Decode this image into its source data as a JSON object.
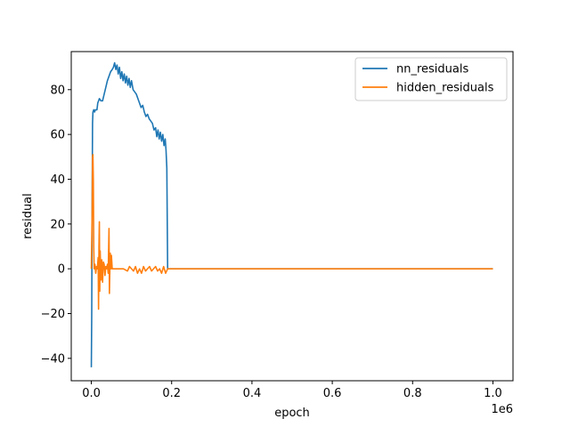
{
  "chart_data": {
    "type": "line",
    "title": "",
    "xlabel": "epoch",
    "ylabel": "residual",
    "x_offset_text": "1e6",
    "xlim": [
      -50000,
      1050000
    ],
    "ylim": [
      -50,
      97
    ],
    "x_ticks": [
      0,
      200000,
      400000,
      600000,
      800000,
      1000000
    ],
    "x_tick_labels": [
      "0.0",
      "0.2",
      "0.4",
      "0.6",
      "0.8",
      "1.0"
    ],
    "y_ticks": [
      -40,
      -20,
      0,
      20,
      40,
      60,
      80
    ],
    "y_tick_labels": [
      "−40",
      "−20",
      "0",
      "20",
      "40",
      "60",
      "80"
    ],
    "grid": false,
    "legend_position": "top-right",
    "series": [
      {
        "name": "nn_residuals",
        "color": "#1f77b4",
        "points": [
          [
            0,
            -44
          ],
          [
            1000,
            -20
          ],
          [
            2000,
            30
          ],
          [
            3000,
            65
          ],
          [
            4000,
            70
          ],
          [
            6000,
            71
          ],
          [
            8000,
            70
          ],
          [
            10000,
            71
          ],
          [
            14000,
            71
          ],
          [
            16000,
            74
          ],
          [
            20000,
            76
          ],
          [
            24000,
            75
          ],
          [
            28000,
            75
          ],
          [
            32000,
            78
          ],
          [
            36000,
            81
          ],
          [
            40000,
            84
          ],
          [
            44000,
            86
          ],
          [
            48000,
            88
          ],
          [
            52000,
            89
          ],
          [
            55000,
            90
          ],
          [
            58000,
            92
          ],
          [
            61000,
            89
          ],
          [
            64000,
            91
          ],
          [
            67000,
            87
          ],
          [
            70000,
            90
          ],
          [
            73000,
            85
          ],
          [
            76000,
            88
          ],
          [
            79000,
            84
          ],
          [
            82000,
            87
          ],
          [
            85000,
            83
          ],
          [
            88000,
            86
          ],
          [
            91000,
            82
          ],
          [
            94000,
            85
          ],
          [
            97000,
            81
          ],
          [
            100000,
            84
          ],
          [
            104000,
            80
          ],
          [
            108000,
            79
          ],
          [
            112000,
            78
          ],
          [
            116000,
            76
          ],
          [
            120000,
            74
          ],
          [
            124000,
            72
          ],
          [
            128000,
            73
          ],
          [
            132000,
            70
          ],
          [
            136000,
            68
          ],
          [
            140000,
            69
          ],
          [
            144000,
            67
          ],
          [
            148000,
            66
          ],
          [
            152000,
            65
          ],
          [
            156000,
            62
          ],
          [
            160000,
            63
          ],
          [
            163000,
            59
          ],
          [
            166000,
            62
          ],
          [
            169000,
            58
          ],
          [
            172000,
            61
          ],
          [
            175000,
            57
          ],
          [
            178000,
            60
          ],
          [
            181000,
            55
          ],
          [
            184000,
            58
          ],
          [
            186000,
            53
          ],
          [
            188000,
            45
          ],
          [
            190000,
            0
          ],
          [
            300000,
            0
          ],
          [
            500000,
            0
          ],
          [
            700000,
            0
          ],
          [
            900000,
            0
          ],
          [
            1000000,
            0
          ]
        ]
      },
      {
        "name": "hidden_residuals",
        "color": "#ff7f0e",
        "points": [
          [
            0,
            0
          ],
          [
            2000,
            25
          ],
          [
            3000,
            50
          ],
          [
            4000,
            51
          ],
          [
            5000,
            40
          ],
          [
            6000,
            10
          ],
          [
            7000,
            0
          ],
          [
            9000,
            2
          ],
          [
            11000,
            -2
          ],
          [
            13000,
            1
          ],
          [
            15000,
            0
          ],
          [
            17000,
            5
          ],
          [
            18000,
            -18
          ],
          [
            19000,
            10
          ],
          [
            20000,
            21
          ],
          [
            21000,
            -10
          ],
          [
            22000,
            8
          ],
          [
            24000,
            -5
          ],
          [
            26000,
            4
          ],
          [
            28000,
            -6
          ],
          [
            30000,
            3
          ],
          [
            32000,
            2
          ],
          [
            34000,
            -3
          ],
          [
            36000,
            1
          ],
          [
            38000,
            0
          ],
          [
            40000,
            2
          ],
          [
            42000,
            -2
          ],
          [
            44000,
            18
          ],
          [
            45000,
            -11
          ],
          [
            47000,
            7
          ],
          [
            49000,
            0
          ],
          [
            50000,
            6
          ],
          [
            52000,
            0
          ],
          [
            60000,
            0
          ],
          [
            80000,
            0
          ],
          [
            90000,
            -1
          ],
          [
            95000,
            1
          ],
          [
            100000,
            0
          ],
          [
            105000,
            -1
          ],
          [
            110000,
            1
          ],
          [
            115000,
            -2
          ],
          [
            120000,
            0
          ],
          [
            125000,
            -2
          ],
          [
            130000,
            1
          ],
          [
            135000,
            -1
          ],
          [
            140000,
            0
          ],
          [
            145000,
            1
          ],
          [
            150000,
            -1
          ],
          [
            155000,
            0
          ],
          [
            160000,
            1
          ],
          [
            165000,
            -1
          ],
          [
            170000,
            0
          ],
          [
            175000,
            -2
          ],
          [
            180000,
            1
          ],
          [
            185000,
            -2
          ],
          [
            190000,
            0
          ],
          [
            400000,
            0
          ],
          [
            600000,
            0
          ],
          [
            800000,
            0
          ],
          [
            1000000,
            0
          ]
        ]
      }
    ]
  }
}
